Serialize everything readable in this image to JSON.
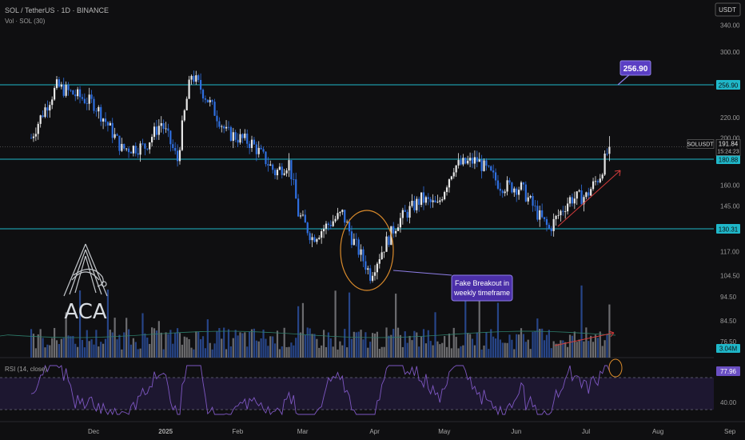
{
  "header": {
    "symbol_line": "SOL / TetherUS · 1D · BINANCE",
    "volume_line": "Vol · SOL (30)",
    "currency": "USDT"
  },
  "logo": {
    "text": "ACA"
  },
  "colors": {
    "background": "#0f0f11",
    "up": "#e8e8e8",
    "down": "#2f6fe0",
    "level_line": "#1fb7c9",
    "trend_arrow": "#d23b3b",
    "annotation_box": "#4b2fa8",
    "rsi_line": "#7e57c2",
    "rsi_band": "#2a1f4a",
    "fake_breakout_circle": "#d98a2b"
  },
  "chart_data": {
    "type": "candlestick",
    "symbol": "SOLUSDT",
    "timeframe": "1D",
    "exchange": "BINANCE",
    "y_scale": "log",
    "ylim": [
      80,
      380
    ],
    "y_ticks": [
      "340.00",
      "300.00",
      "256.90",
      "220.00",
      "200.00",
      "180.88",
      "160.00",
      "145.00",
      "130.31",
      "117.00",
      "104.50",
      "94.50",
      "84.50",
      "76.50"
    ],
    "x_ticks": [
      "Dec",
      "2025",
      "Feb",
      "Mar",
      "Apr",
      "May",
      "Jun",
      "Jul",
      "Aug",
      "Sep"
    ],
    "last_price": {
      "symbol": "SOLUSDT",
      "value": "191.84",
      "countdown": "15:24:23"
    },
    "levels": [
      {
        "label": "256.90",
        "value": 256.9
      },
      {
        "label": "180.88",
        "value": 180.88
      },
      {
        "label": "130.31",
        "value": 130.31
      }
    ],
    "target_label": "256.90",
    "close_path": [
      {
        "date": "2024-11-11",
        "close": 200
      },
      {
        "date": "2024-11-22",
        "close": 255
      },
      {
        "date": "2024-12-08",
        "close": 235
      },
      {
        "date": "2024-12-20",
        "close": 190
      },
      {
        "date": "2024-12-30",
        "close": 192
      },
      {
        "date": "2025-01-06",
        "close": 215
      },
      {
        "date": "2025-01-13",
        "close": 180
      },
      {
        "date": "2025-01-19",
        "close": 270
      },
      {
        "date": "2025-01-27",
        "close": 235
      },
      {
        "date": "2025-02-03",
        "close": 205
      },
      {
        "date": "2025-02-14",
        "close": 195
      },
      {
        "date": "2025-02-24",
        "close": 170
      },
      {
        "date": "2025-03-02",
        "close": 178
      },
      {
        "date": "2025-03-06",
        "close": 140
      },
      {
        "date": "2025-03-12",
        "close": 125
      },
      {
        "date": "2025-03-25",
        "close": 140
      },
      {
        "date": "2025-03-29",
        "close": 125
      },
      {
        "date": "2025-04-06",
        "close": 105
      },
      {
        "date": "2025-04-10",
        "close": 115
      },
      {
        "date": "2025-04-18",
        "close": 135
      },
      {
        "date": "2025-04-28",
        "close": 150
      },
      {
        "date": "2025-05-05",
        "close": 145
      },
      {
        "date": "2025-05-12",
        "close": 175
      },
      {
        "date": "2025-05-22",
        "close": 180
      },
      {
        "date": "2025-06-01",
        "close": 160
      },
      {
        "date": "2025-06-10",
        "close": 158
      },
      {
        "date": "2025-06-17",
        "close": 140
      },
      {
        "date": "2025-06-22",
        "close": 130
      },
      {
        "date": "2025-07-01",
        "close": 150
      },
      {
        "date": "2025-07-08",
        "close": 152
      },
      {
        "date": "2025-07-14",
        "close": 168
      },
      {
        "date": "2025-07-18",
        "close": 191.84
      }
    ],
    "volume": {
      "label": "Vol · SOL (30)",
      "last_value": "3.04M"
    },
    "rsi": {
      "label": "RSI (14, close)",
      "last_value": "77.96",
      "bottom_tick": "40.00",
      "upper_band": 70,
      "lower_band": 30
    },
    "annotations": [
      {
        "text_lines": [
          "Fake Breakout in",
          "weekly timeframe"
        ]
      }
    ]
  }
}
